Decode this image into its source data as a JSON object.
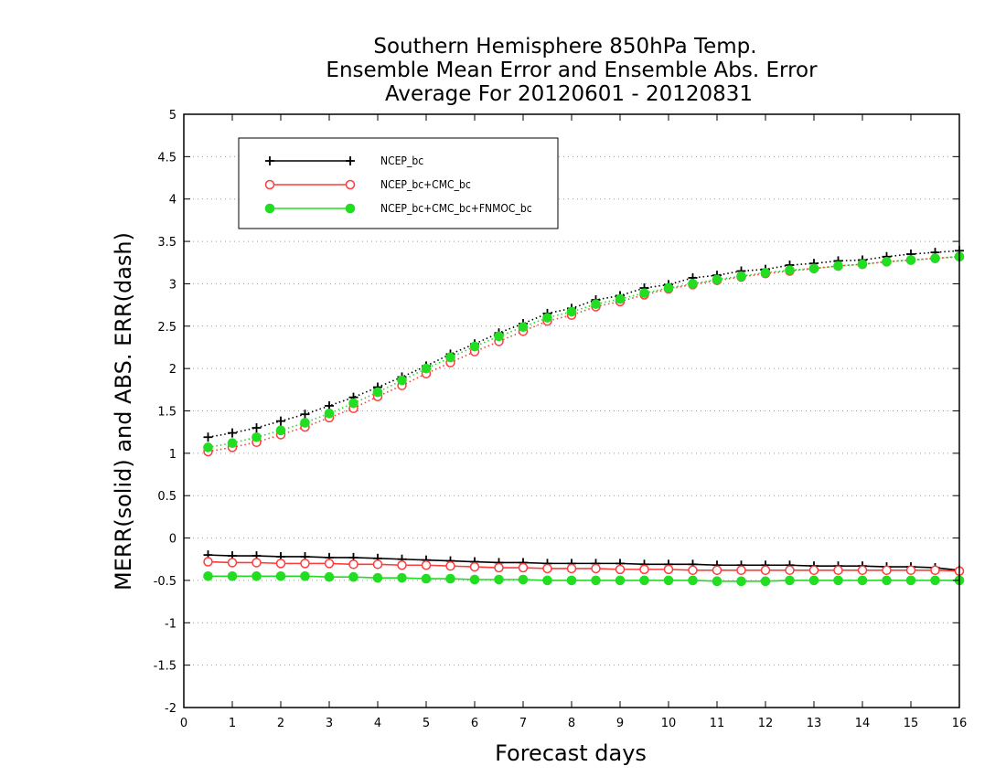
{
  "chart_data": {
    "type": "line",
    "title_lines": [
      "Southern Hemisphere 850hPa Temp.",
      "Ensemble Mean Error and Ensemble Abs. Error",
      "Average For 20120601 - 20120831"
    ],
    "xlabel": "Forecast days",
    "ylabel": "MERR(solid) and ABS. ERR(dash)",
    "xlim": [
      0,
      16
    ],
    "ylim": [
      -2,
      5
    ],
    "x_ticks": [
      0,
      1,
      2,
      3,
      4,
      5,
      6,
      7,
      8,
      9,
      10,
      11,
      12,
      13,
      14,
      15,
      16
    ],
    "y_ticks": [
      -2,
      -1.5,
      -1,
      -0.5,
      0,
      0.5,
      1,
      1.5,
      2,
      2.5,
      3,
      3.5,
      4,
      4.5,
      5
    ],
    "y_tick_labels": [
      "-2",
      "-1.5",
      "-1",
      "-0.5",
      "0",
      "0.5",
      "1",
      "1.5",
      "2",
      "2.5",
      "3",
      "3.5",
      "4",
      "4.5",
      "5"
    ],
    "grid": true,
    "legend_position": "top-left",
    "x": [
      0.5,
      1,
      1.5,
      2,
      2.5,
      3,
      3.5,
      4,
      4.5,
      5,
      5.5,
      6,
      6.5,
      7,
      7.5,
      8,
      8.5,
      9,
      9.5,
      10,
      10.5,
      11,
      11.5,
      12,
      12.5,
      13,
      13.5,
      14,
      14.5,
      15,
      15.5,
      16
    ],
    "series": [
      {
        "name": "NCEP_bc",
        "color": "#000000",
        "marker": "plus",
        "merr": [
          -0.2,
          -0.21,
          -0.21,
          -0.22,
          -0.22,
          -0.23,
          -0.23,
          -0.24,
          -0.25,
          -0.26,
          -0.27,
          -0.28,
          -0.29,
          -0.29,
          -0.3,
          -0.3,
          -0.3,
          -0.3,
          -0.31,
          -0.31,
          -0.31,
          -0.32,
          -0.32,
          -0.32,
          -0.32,
          -0.33,
          -0.33,
          -0.33,
          -0.34,
          -0.34,
          -0.35,
          -0.38
        ],
        "abs_err": [
          1.19,
          1.24,
          1.3,
          1.38,
          1.46,
          1.56,
          1.66,
          1.78,
          1.9,
          2.03,
          2.17,
          2.29,
          2.42,
          2.53,
          2.65,
          2.71,
          2.81,
          2.86,
          2.95,
          2.99,
          3.07,
          3.1,
          3.15,
          3.17,
          3.22,
          3.24,
          3.27,
          3.28,
          3.32,
          3.35,
          3.37,
          3.39
        ]
      },
      {
        "name": "NCEP_bc+CMC_bc",
        "color": "#ff3b3b",
        "marker": "open-circle",
        "merr": [
          -0.28,
          -0.29,
          -0.29,
          -0.3,
          -0.3,
          -0.3,
          -0.31,
          -0.31,
          -0.32,
          -0.32,
          -0.33,
          -0.34,
          -0.35,
          -0.35,
          -0.36,
          -0.36,
          -0.36,
          -0.37,
          -0.37,
          -0.37,
          -0.38,
          -0.38,
          -0.38,
          -0.38,
          -0.38,
          -0.38,
          -0.38,
          -0.38,
          -0.38,
          -0.38,
          -0.38,
          -0.39
        ],
        "abs_err": [
          1.02,
          1.07,
          1.13,
          1.22,
          1.31,
          1.42,
          1.53,
          1.67,
          1.8,
          1.94,
          2.07,
          2.2,
          2.32,
          2.44,
          2.56,
          2.63,
          2.73,
          2.79,
          2.87,
          2.94,
          2.99,
          3.04,
          3.08,
          3.12,
          3.15,
          3.18,
          3.21,
          3.23,
          3.26,
          3.28,
          3.3,
          3.32
        ]
      },
      {
        "name": "NCEP_bc+CMC_bc+FNMOC_bc",
        "color": "#22dd22",
        "marker": "filled-circle",
        "merr": [
          -0.45,
          -0.45,
          -0.45,
          -0.45,
          -0.45,
          -0.46,
          -0.46,
          -0.47,
          -0.47,
          -0.48,
          -0.48,
          -0.49,
          -0.49,
          -0.49,
          -0.5,
          -0.5,
          -0.5,
          -0.5,
          -0.5,
          -0.5,
          -0.5,
          -0.51,
          -0.51,
          -0.51,
          -0.5,
          -0.5,
          -0.5,
          -0.5,
          -0.5,
          -0.5,
          -0.5,
          -0.5
        ],
        "abs_err": [
          1.07,
          1.12,
          1.19,
          1.27,
          1.36,
          1.47,
          1.59,
          1.72,
          1.86,
          2.0,
          2.13,
          2.26,
          2.38,
          2.49,
          2.6,
          2.67,
          2.76,
          2.82,
          2.89,
          2.95,
          3.0,
          3.05,
          3.09,
          3.13,
          3.16,
          3.18,
          3.21,
          3.23,
          3.26,
          3.28,
          3.3,
          3.32
        ]
      }
    ]
  }
}
